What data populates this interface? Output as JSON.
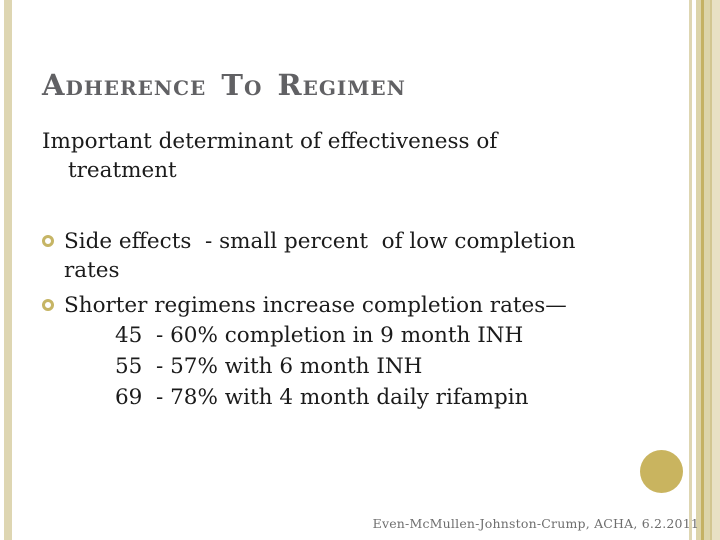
{
  "slide": {
    "title": "Adherence To Regimen",
    "body": "Important determinant of effectiveness of\ntreatment",
    "bullets": [
      {
        "text": "Side effects  - small percent  of low completion\nrates"
      },
      {
        "text": "Shorter regimens increase completion rates—"
      }
    ],
    "sub_lines": [
      "45  - 60% completion in 9 month INH",
      "55  - 57% with 6 month INH",
      "69  - 78% with 4 month daily rifampin"
    ],
    "footer": "Even-McMullen-Johnston-Crump, ACHA, 6.2.2011",
    "icons": {
      "bullet": "ring-bullet-icon"
    },
    "colors": {
      "khaki": "#ded6b2",
      "tan": "#dcd4aa",
      "gold": "#c4b164",
      "medium": "#d2c691",
      "pale": "#e8e1c4",
      "circle": "#c9b45f",
      "ring": "#c6b565",
      "titlegray": "#616164",
      "footergray": "#6e6e6e"
    }
  }
}
